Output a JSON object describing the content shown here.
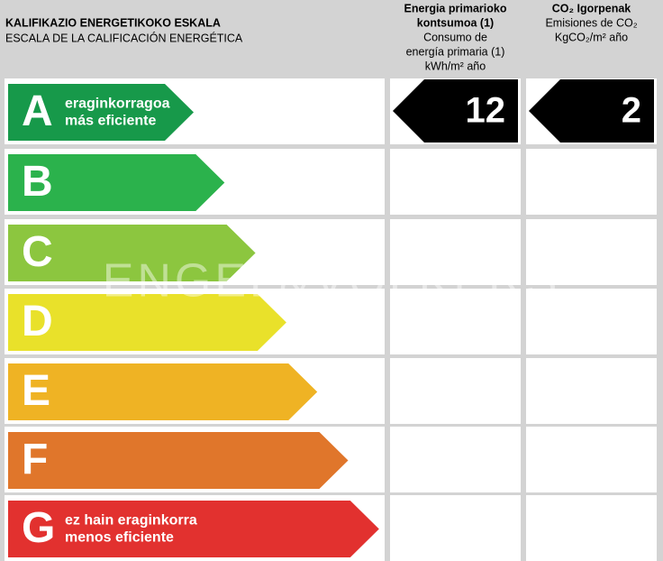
{
  "header": {
    "title": "KALIFIKAZIO ENERGETIKOKO ESKALA",
    "subtitle": "ESCALA DE LA CALIFICACIÓN ENERGÉTICA"
  },
  "columns": [
    {
      "title_lines": [
        "Energia primarioko",
        "kontsumoa (1)"
      ],
      "subtitle_lines": [
        "Consumo de",
        "energía primaria (1)",
        "kWh/m² año"
      ],
      "value": "12",
      "rating_row": 0
    },
    {
      "title_lines": [
        "CO₂ Igorpenak"
      ],
      "subtitle_lines": [
        "Emisiones de CO₂",
        "KgCO₂/m² año"
      ],
      "value": "2",
      "rating_row": 0
    }
  ],
  "ratings": [
    {
      "letter": "A",
      "color": "#17994a",
      "label": [
        "eraginkorragoa",
        "más eficiente"
      ]
    },
    {
      "letter": "B",
      "color": "#2bb24c",
      "label": []
    },
    {
      "letter": "C",
      "color": "#8cc63f",
      "label": []
    },
    {
      "letter": "D",
      "color": "#e9e12a",
      "label": []
    },
    {
      "letter": "E",
      "color": "#efb324",
      "label": []
    },
    {
      "letter": "F",
      "color": "#e0762b",
      "label": []
    },
    {
      "letter": "G",
      "color": "#e2312f",
      "label": [
        "ez hain eraginkorra",
        "menos eficiente"
      ]
    }
  ],
  "watermark": "ENGEL&VÖLKERS"
}
